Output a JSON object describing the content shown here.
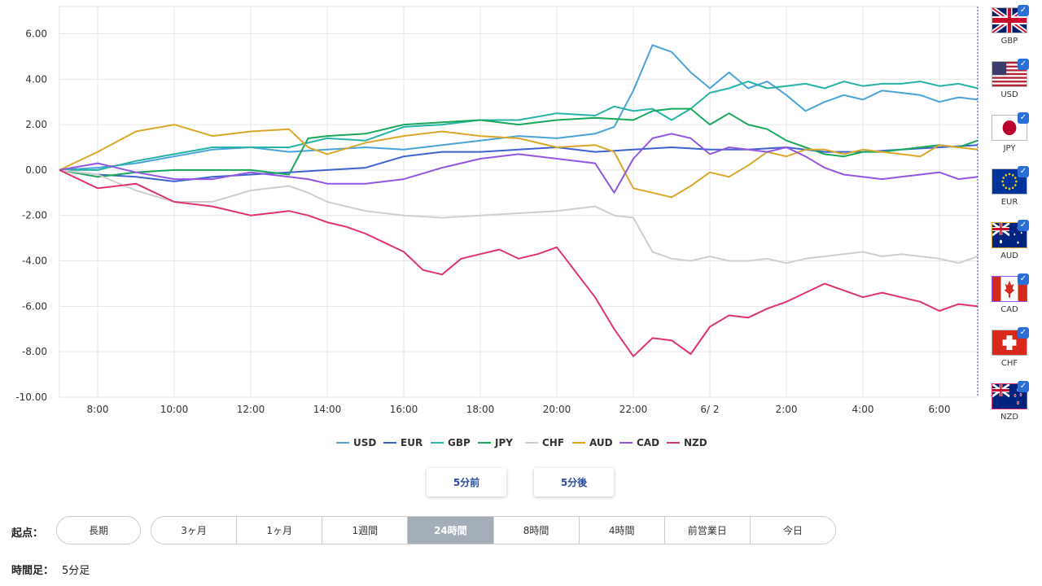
{
  "chart_data": {
    "type": "line",
    "title": "",
    "xlabel": "",
    "ylabel": "",
    "ylim": [
      -10,
      7.2
    ],
    "xlim": [
      -0.5,
      23.5
    ],
    "yticks": [
      6,
      4,
      2,
      0,
      -2,
      -4,
      -6,
      -8,
      -10
    ],
    "yticklabels": [
      "6.00",
      "4.00",
      "2.00",
      "0.00",
      "-2.00",
      "-4.00",
      "-6.00",
      "-8.00",
      "-10.00"
    ],
    "xticks": [
      0.5,
      2.5,
      4.5,
      6.5,
      8.5,
      10.5,
      12.5,
      14.5,
      16.5,
      18.5,
      20.5,
      22.5
    ],
    "xticklabels": [
      "8:00",
      "10:00",
      "12:00",
      "14:00",
      "16:00",
      "18:00",
      "20:00",
      "22:00",
      "6/ 2",
      "2:00",
      "4:00",
      "6:00"
    ],
    "grid": true,
    "legend_position": "bottom",
    "series": [
      {
        "name": "USD",
        "color": "#4aa3d8",
        "x": [
          -0.5,
          0.5,
          1.5,
          2.5,
          3.5,
          4.5,
          5.5,
          6.5,
          7.5,
          8.5,
          9.5,
          10.5,
          11.5,
          12.5,
          13.5,
          14.0,
          14.5,
          15.0,
          15.5,
          16.0,
          16.5,
          17.0,
          17.5,
          18.0,
          18.5,
          19.0,
          19.5,
          20.0,
          20.5,
          21.0,
          21.5,
          22.0,
          22.5,
          23.0,
          23.5
        ],
        "y": [
          0.0,
          0.1,
          0.3,
          0.6,
          0.9,
          1.0,
          0.8,
          0.9,
          1.0,
          0.9,
          1.1,
          1.3,
          1.5,
          1.4,
          1.6,
          1.9,
          3.5,
          5.5,
          5.2,
          4.3,
          3.6,
          4.3,
          3.6,
          3.9,
          3.3,
          2.6,
          3.0,
          3.3,
          3.1,
          3.5,
          3.4,
          3.3,
          3.0,
          3.2,
          3.1
        ]
      },
      {
        "name": "EUR",
        "color": "#3f62cf",
        "x": [
          -0.5,
          0.5,
          1.5,
          2.5,
          3.5,
          4.5,
          5.5,
          6.5,
          7.5,
          8.5,
          9.5,
          10.5,
          11.5,
          12.5,
          13.5,
          14.5,
          15.5,
          16.5,
          17.5,
          18.5,
          19.5,
          20.5,
          21.5,
          22.5,
          23.5
        ],
        "y": [
          0.0,
          -0.2,
          -0.3,
          -0.5,
          -0.3,
          -0.2,
          -0.1,
          0.0,
          0.1,
          0.6,
          0.8,
          0.8,
          0.9,
          1.0,
          0.8,
          0.9,
          1.0,
          0.9,
          0.9,
          1.0,
          0.8,
          0.8,
          0.9,
          1.0,
          1.1
        ]
      },
      {
        "name": "GBP",
        "color": "#26b3a6",
        "x": [
          -0.5,
          0.5,
          1.5,
          2.5,
          3.5,
          4.5,
          5.5,
          6.0,
          6.5,
          7.5,
          8.5,
          9.5,
          10.5,
          11.5,
          12.5,
          13.5,
          14.0,
          14.5,
          15.0,
          15.5,
          16.0,
          16.5,
          17.0,
          17.5,
          18.0,
          18.5,
          19.0,
          19.5,
          20.0,
          20.5,
          21.0,
          21.5,
          22.0,
          22.5,
          23.0,
          23.5
        ],
        "y": [
          0.0,
          0.0,
          0.4,
          0.7,
          1.0,
          1.0,
          1.0,
          1.2,
          1.4,
          1.3,
          1.9,
          2.0,
          2.2,
          2.2,
          2.5,
          2.4,
          2.8,
          2.6,
          2.7,
          2.2,
          2.7,
          3.4,
          3.6,
          3.9,
          3.6,
          3.7,
          3.8,
          3.6,
          3.9,
          3.7,
          3.8,
          3.8,
          3.9,
          3.7,
          3.8,
          3.6
        ]
      },
      {
        "name": "JPY",
        "color": "#18a85c",
        "x": [
          -0.5,
          0.5,
          1.5,
          2.5,
          3.5,
          4.5,
          5.5,
          6.0,
          6.5,
          7.5,
          8.5,
          9.5,
          10.5,
          11.5,
          12.5,
          13.5,
          14.5,
          15.0,
          15.5,
          16.0,
          16.5,
          17.0,
          17.5,
          18.0,
          18.5,
          19.0,
          19.5,
          20.0,
          20.5,
          21.0,
          21.5,
          22.0,
          22.5,
          23.0,
          23.5
        ],
        "y": [
          0.0,
          -0.3,
          -0.1,
          0.0,
          0.0,
          0.0,
          -0.2,
          1.4,
          1.5,
          1.6,
          2.0,
          2.1,
          2.2,
          2.0,
          2.2,
          2.3,
          2.2,
          2.6,
          2.7,
          2.7,
          2.0,
          2.5,
          2.0,
          1.8,
          1.3,
          1.0,
          0.7,
          0.6,
          0.8,
          0.8,
          0.9,
          1.0,
          1.1,
          1.0,
          1.3
        ]
      },
      {
        "name": "CHF",
        "color": "#cfcfcf",
        "x": [
          -0.5,
          0.5,
          1.5,
          2.5,
          3.5,
          4.5,
          5.5,
          6.0,
          6.5,
          7.5,
          8.5,
          9.5,
          10.5,
          11.5,
          12.5,
          13.5,
          14.0,
          14.5,
          15.0,
          15.5,
          16.0,
          16.5,
          17.0,
          17.5,
          18.0,
          18.5,
          19.0,
          19.5,
          20.0,
          20.5,
          21.0,
          21.5,
          22.0,
          22.5,
          23.0,
          23.5
        ],
        "y": [
          0.0,
          -0.2,
          -0.9,
          -1.4,
          -1.4,
          -0.9,
          -0.7,
          -1.0,
          -1.4,
          -1.8,
          -2.0,
          -2.1,
          -2.0,
          -1.9,
          -1.8,
          -1.6,
          -2.0,
          -2.1,
          -3.6,
          -3.9,
          -4.0,
          -3.8,
          -4.0,
          -4.0,
          -3.9,
          -4.1,
          -3.9,
          -3.8,
          -3.7,
          -3.6,
          -3.8,
          -3.7,
          -3.8,
          -3.9,
          -4.1,
          -3.8
        ]
      },
      {
        "name": "AUD",
        "color": "#d9a72a",
        "x": [
          -0.5,
          0.5,
          1.5,
          2.5,
          3.5,
          4.5,
          5.5,
          6.0,
          6.5,
          7.5,
          8.5,
          9.5,
          10.5,
          11.5,
          12.5,
          13.5,
          14.0,
          14.5,
          15.0,
          15.5,
          16.0,
          16.5,
          17.0,
          17.5,
          18.0,
          18.5,
          19.0,
          19.5,
          20.0,
          20.5,
          21.0,
          21.5,
          22.0,
          22.5,
          23.0,
          23.5
        ],
        "y": [
          0.0,
          0.8,
          1.7,
          2.0,
          1.5,
          1.7,
          1.8,
          1.0,
          0.7,
          1.2,
          1.5,
          1.7,
          1.5,
          1.4,
          1.0,
          1.1,
          0.8,
          -0.8,
          -1.0,
          -1.2,
          -0.7,
          -0.1,
          -0.3,
          0.2,
          0.8,
          0.6,
          0.9,
          0.9,
          0.7,
          0.9,
          0.8,
          0.7,
          0.6,
          1.1,
          1.0,
          0.9
        ]
      },
      {
        "name": "CAD",
        "color": "#9256e0",
        "x": [
          -0.5,
          0.5,
          1.5,
          2.5,
          3.5,
          4.5,
          5.5,
          6.0,
          6.5,
          7.5,
          8.5,
          9.5,
          10.5,
          11.5,
          12.5,
          13.5,
          14.0,
          14.5,
          15.0,
          15.5,
          16.0,
          16.5,
          17.0,
          17.5,
          18.0,
          18.5,
          19.0,
          19.5,
          20.0,
          20.5,
          21.0,
          21.5,
          22.0,
          22.5,
          23.0,
          23.5
        ],
        "y": [
          0.0,
          0.3,
          -0.1,
          -0.4,
          -0.4,
          -0.1,
          -0.3,
          -0.4,
          -0.6,
          -0.6,
          -0.4,
          0.1,
          0.5,
          0.7,
          0.5,
          0.3,
          -1.0,
          0.5,
          1.4,
          1.6,
          1.4,
          0.7,
          1.0,
          0.9,
          0.8,
          1.0,
          0.6,
          0.1,
          -0.2,
          -0.3,
          -0.4,
          -0.3,
          -0.2,
          -0.1,
          -0.4,
          -0.3
        ]
      },
      {
        "name": "NZD",
        "color": "#e0336d",
        "x": [
          -0.5,
          0.5,
          1.5,
          2.5,
          3.5,
          4.5,
          5.5,
          6.0,
          6.5,
          7.0,
          7.5,
          8.0,
          8.5,
          9.0,
          9.5,
          10.0,
          10.5,
          11.0,
          11.5,
          12.0,
          12.5,
          13.0,
          13.5,
          14.0,
          14.5,
          15.0,
          15.5,
          16.0,
          16.5,
          17.0,
          17.5,
          18.0,
          18.5,
          19.0,
          19.5,
          20.0,
          20.5,
          21.0,
          21.5,
          22.0,
          22.5,
          23.0,
          23.5
        ],
        "y": [
          0.0,
          -0.8,
          -0.6,
          -1.4,
          -1.6,
          -2.0,
          -1.8,
          -2.0,
          -2.3,
          -2.5,
          -2.8,
          -3.2,
          -3.6,
          -4.4,
          -4.6,
          -3.9,
          -3.7,
          -3.5,
          -3.9,
          -3.7,
          -3.4,
          -4.5,
          -5.6,
          -7.0,
          -8.2,
          -7.4,
          -7.5,
          -8.1,
          -6.9,
          -6.4,
          -6.5,
          -6.1,
          -5.8,
          -5.4,
          -5.0,
          -5.3,
          -5.6,
          -5.4,
          -5.6,
          -5.8,
          -6.2,
          -5.9,
          -6.0
        ]
      }
    ]
  },
  "sidebar": {
    "items": [
      {
        "label": "GBP",
        "flag": "gb-flag-icon"
      },
      {
        "label": "USD",
        "flag": "us-flag-icon"
      },
      {
        "label": "JPY",
        "flag": "jp-flag-icon"
      },
      {
        "label": "EUR",
        "flag": "eu-flag-icon"
      },
      {
        "label": "AUD",
        "flag": "au-flag-icon"
      },
      {
        "label": "CAD",
        "flag": "ca-flag-icon"
      },
      {
        "label": "CHF",
        "flag": "ch-flag-icon"
      },
      {
        "label": "NZD",
        "flag": "nz-flag-icon"
      }
    ],
    "check_glyph": "✓"
  },
  "nav": {
    "prev_label": "5分前",
    "next_label": "5分後"
  },
  "start": {
    "label": "起点：",
    "long_label": "長期",
    "periods": [
      "3ヶ月",
      "1ヶ月",
      "1週間",
      "24時間",
      "8時間",
      "4時間",
      "前営業日",
      "今日"
    ],
    "active": "24時間"
  },
  "timeframe": {
    "label": "時間足：",
    "value": "5分足"
  }
}
